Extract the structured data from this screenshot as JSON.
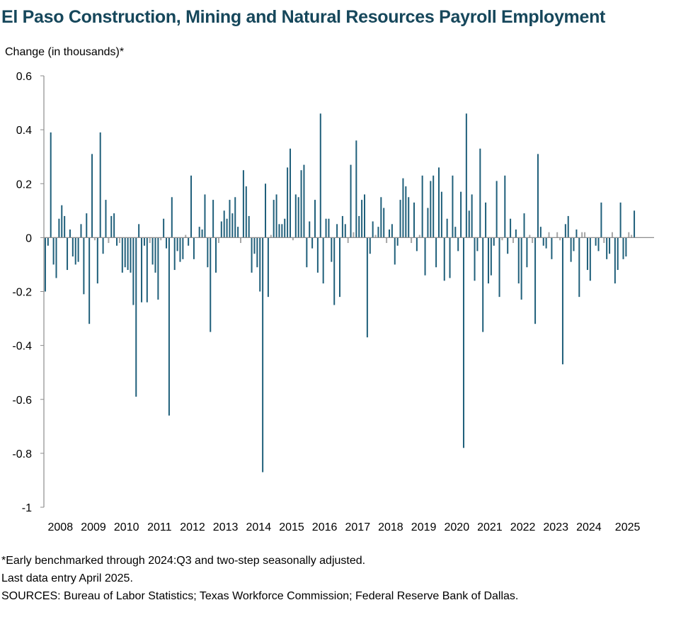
{
  "chart_data": {
    "type": "bar",
    "title": "El Paso Construction, Mining and Natural Resources Payroll Employment",
    "ylabel": "Change (in thousands)*",
    "xlabel": "",
    "ylim": [
      -1,
      0.6
    ],
    "yticks": [
      0.6,
      0.4,
      0.2,
      0,
      -0.2,
      -0.4,
      -0.6,
      -0.8,
      -1
    ],
    "ytick_labels": [
      "0.6",
      "0.4",
      "0.2",
      "0",
      "-0.2",
      "-0.4",
      "-0.6",
      "-0.8",
      "-1"
    ],
    "year_labels": [
      "2008",
      "2009",
      "2010",
      "2011",
      "2012",
      "2013",
      "2014",
      "2015",
      "2016",
      "2017",
      "2018",
      "2019",
      "2020",
      "2021",
      "2022",
      "2023",
      "2024",
      "2025"
    ],
    "start": "2008-01",
    "end": "2025-04",
    "bar_color": "#1f5f7a",
    "neutral_color": "#a6a6a6",
    "values": [
      -0.2,
      -0.03,
      0.39,
      -0.1,
      -0.15,
      0.07,
      0.12,
      0.08,
      -0.12,
      0.03,
      -0.07,
      -0.1,
      -0.09,
      0.05,
      -0.21,
      0.09,
      -0.32,
      0.31,
      -0.01,
      -0.17,
      0.39,
      -0.06,
      0.14,
      -0.02,
      0.08,
      0.09,
      -0.03,
      -0.02,
      -0.13,
      -0.11,
      -0.12,
      -0.13,
      -0.25,
      -0.59,
      0.05,
      -0.24,
      -0.03,
      -0.24,
      -0.02,
      -0.1,
      -0.13,
      -0.23,
      -0.01,
      0.07,
      -0.04,
      -0.66,
      0.15,
      -0.12,
      -0.05,
      -0.09,
      -0.08,
      0.01,
      -0.03,
      0.23,
      -0.08,
      0.0,
      0.04,
      0.03,
      0.16,
      -0.11,
      -0.35,
      0.14,
      -0.13,
      -0.02,
      0.06,
      0.1,
      0.07,
      0.14,
      0.09,
      0.15,
      0.04,
      -0.02,
      0.25,
      0.19,
      0.08,
      -0.13,
      -0.06,
      -0.11,
      -0.2,
      -0.87,
      0.2,
      -0.22,
      0.01,
      0.14,
      0.16,
      0.05,
      0.05,
      0.07,
      0.26,
      0.33,
      -0.01,
      0.16,
      0.15,
      0.25,
      0.27,
      -0.11,
      0.06,
      -0.04,
      0.14,
      -0.13,
      0.46,
      -0.17,
      0.07,
      0.07,
      -0.09,
      -0.25,
      0.05,
      -0.22,
      0.08,
      0.05,
      -0.02,
      0.27,
      0.02,
      0.36,
      0.08,
      0.14,
      0.16,
      -0.37,
      -0.06,
      0.06,
      0.01,
      0.04,
      0.15,
      0.11,
      -0.02,
      0.03,
      0.05,
      -0.1,
      -0.03,
      0.14,
      0.22,
      0.19,
      0.15,
      -0.02,
      0.13,
      -0.05,
      0.01,
      0.23,
      -0.14,
      0.11,
      0.21,
      0.23,
      -0.11,
      0.26,
      0.17,
      -0.16,
      0.07,
      -0.15,
      0.23,
      0.04,
      -0.05,
      0.17,
      -0.78,
      0.46,
      0.1,
      0.16,
      -0.16,
      -0.05,
      0.33,
      -0.35,
      0.13,
      -0.17,
      -0.14,
      -0.03,
      0.21,
      -0.22,
      -0.01,
      0.23,
      -0.06,
      0.07,
      -0.02,
      0.03,
      -0.17,
      -0.23,
      0.09,
      -0.11,
      0.01,
      -0.02,
      -0.32,
      0.31,
      0.04,
      -0.03,
      -0.04,
      0.02,
      -0.08,
      0.0,
      0.02,
      -0.01,
      -0.47,
      0.05,
      0.08,
      -0.09,
      -0.05,
      0.03,
      -0.22,
      0.02,
      0.02,
      -0.12,
      -0.16,
      0.0,
      -0.03,
      -0.05,
      0.13,
      -0.02,
      -0.08,
      -0.06,
      0.02,
      -0.17,
      -0.12,
      0.13,
      -0.08,
      -0.07,
      0.02,
      0.01,
      0.1
    ]
  },
  "footnotes": {
    "note1": "*Early benchmarked through 2024:Q3 and two-step seasonally adjusted.",
    "note2": "Last data entry April 2025.",
    "note3": "SOURCES:  Bureau of Labor Statistics; Texas Workforce Commission;  Federal Reserve Bank of Dallas."
  }
}
